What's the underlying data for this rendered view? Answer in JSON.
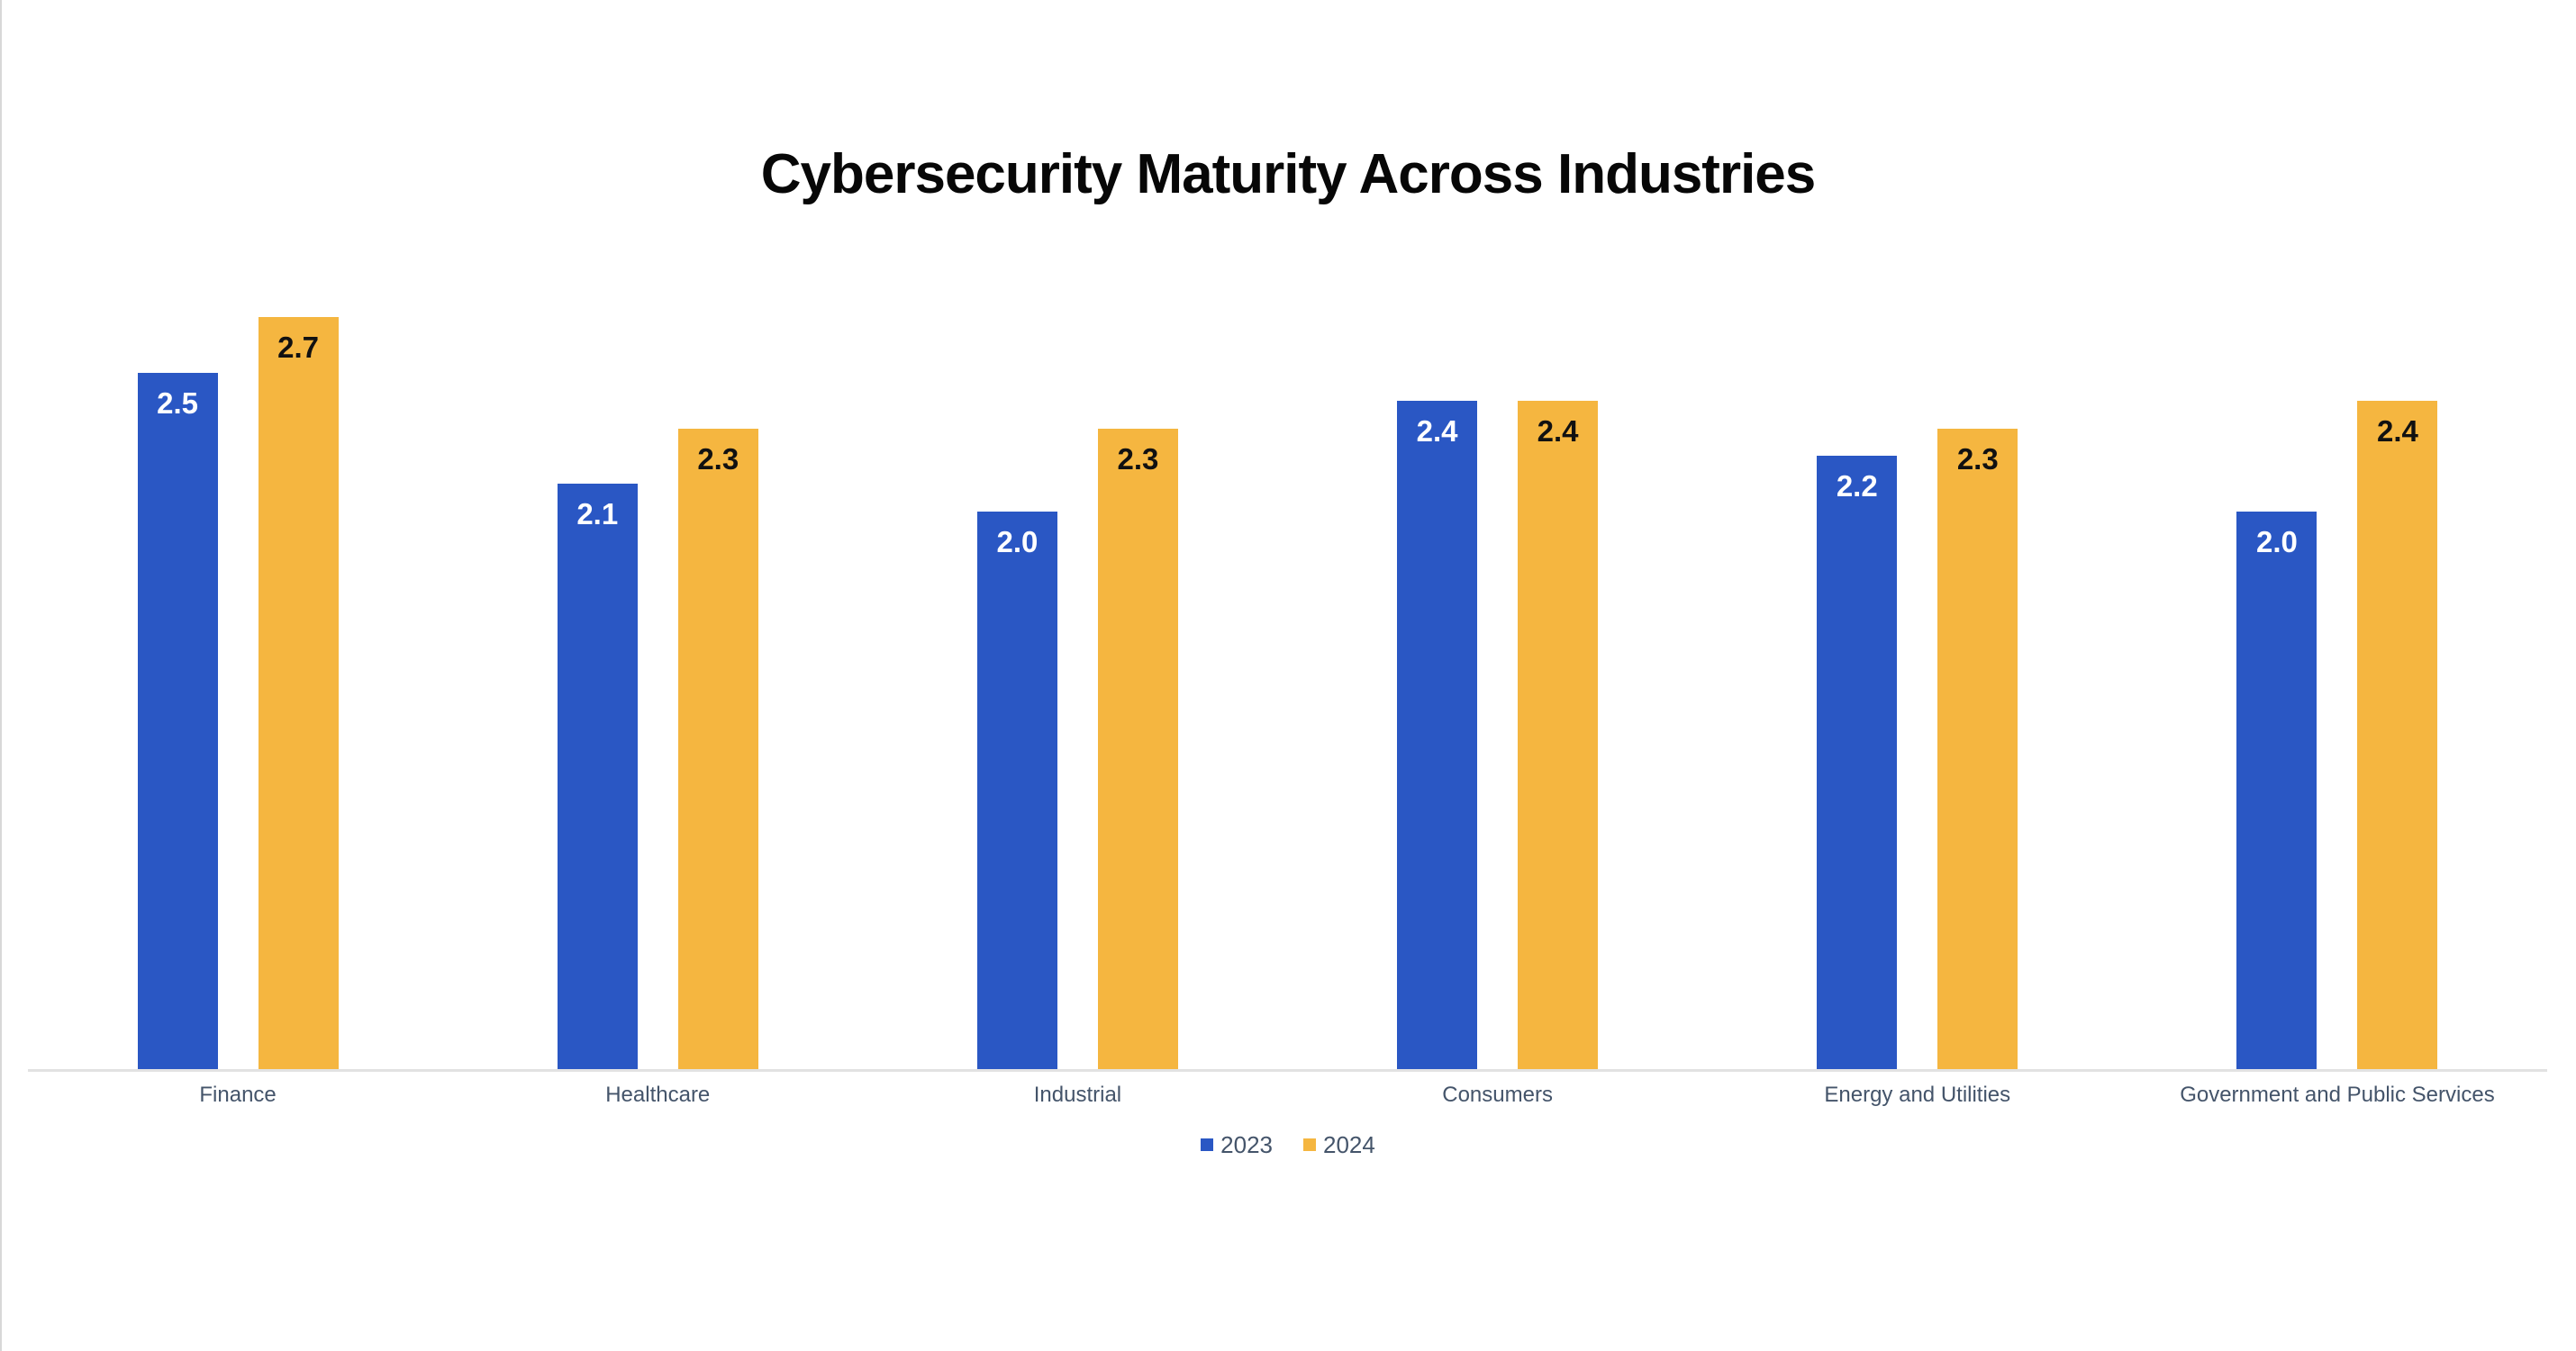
{
  "title": "Cybersecurity Maturity Across Industries",
  "chart_data": {
    "type": "bar",
    "title": "Cybersecurity Maturity Across Industries",
    "categories": [
      "Finance",
      "Healthcare",
      "Industrial",
      "Consumers",
      "Energy and Utilities",
      "Government and Public Services"
    ],
    "series": [
      {
        "name": "2023",
        "color": "#2A57C4",
        "label_color": "#FFFFFF",
        "values": [
          2.5,
          2.1,
          2.0,
          2.4,
          2.2,
          2.0
        ]
      },
      {
        "name": "2024",
        "color": "#F5B640",
        "label_color": "#111111",
        "values": [
          2.7,
          2.3,
          2.3,
          2.4,
          2.3,
          2.4
        ]
      }
    ],
    "xlabel": "",
    "ylabel": "",
    "ylim": [
      0,
      3.0
    ],
    "grid": false,
    "y_axis_visible": false,
    "x_axis_line_color": "#E2E2E2",
    "value_labels": "inside-top",
    "legend_position": "bottom-center",
    "background_color": "#FFFFFF",
    "title_color": "#070707",
    "category_label_color": "#44546A",
    "legend_text_color": "#44546A"
  },
  "legend": {
    "items": [
      {
        "label": "2023",
        "color": "#2A57C4"
      },
      {
        "label": "2024",
        "color": "#F5B640"
      }
    ]
  }
}
